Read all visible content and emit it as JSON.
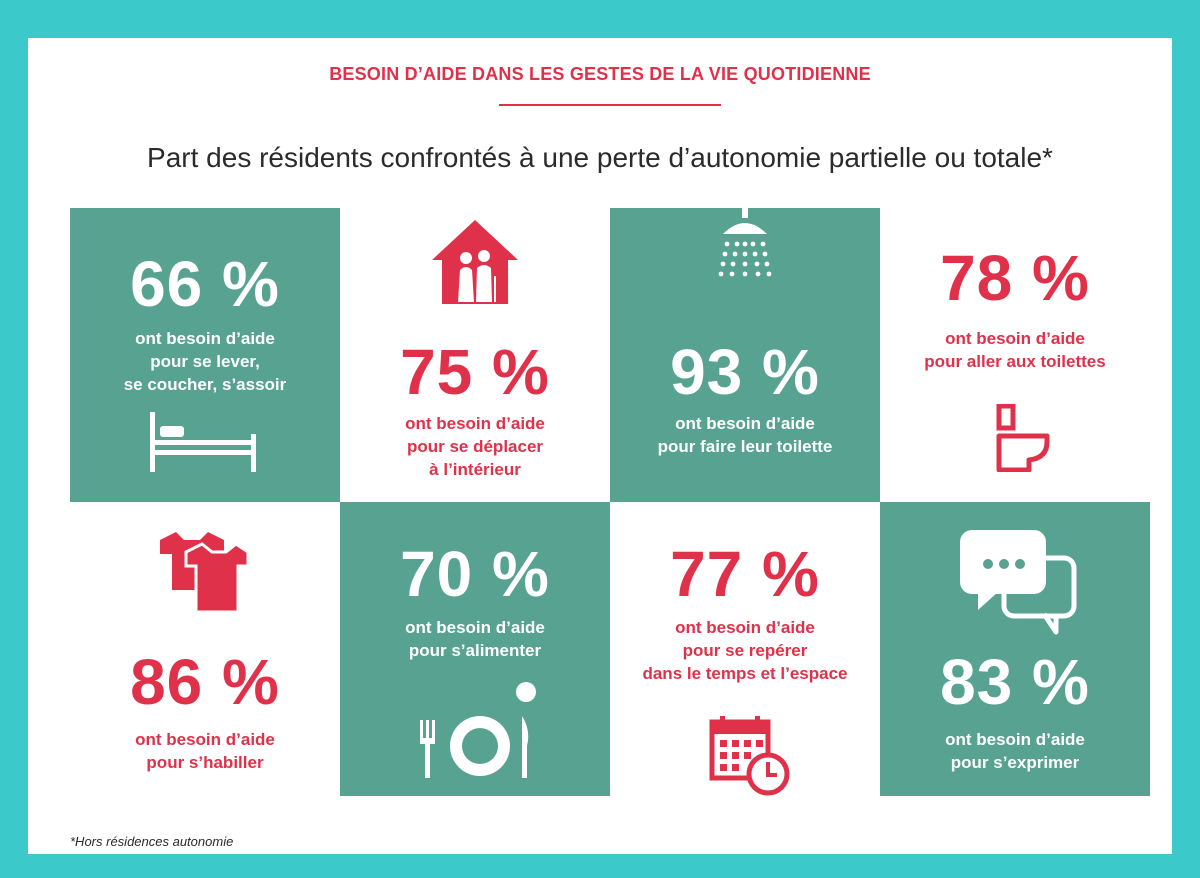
{
  "header": {
    "title": "BESOIN D’AIDE DANS LES GESTES DE LA VIE QUOTIDIENNE",
    "subtitle": "Part des résidents confrontés à une perte d’autonomie partielle ou totale*"
  },
  "colors": {
    "frame": "#3cc9c9",
    "green": "#57a291",
    "red": "#e0314b"
  },
  "tiles": [
    {
      "percent": "66 %",
      "line1": "ont besoin d’aide",
      "line2": "pour se lever,",
      "line3": "se coucher, s’assoir",
      "icon": "bed-icon"
    },
    {
      "percent": "75 %",
      "line1": "ont besoin d’aide",
      "line2": "pour se déplacer",
      "line3": "à l’intérieur",
      "icon": "house-elderly-icon"
    },
    {
      "percent": "93 %",
      "line1": "ont besoin d’aide",
      "line2": "pour faire leur toilette",
      "icon": "shower-icon"
    },
    {
      "percent": "78 %",
      "line1": "ont besoin d’aide",
      "line2": "pour aller aux toilettes",
      "icon": "toilet-icon"
    },
    {
      "percent": "86 %",
      "line1": "ont besoin d’aide",
      "line2": "pour s’habiller",
      "icon": "clothes-icon"
    },
    {
      "percent": "70 %",
      "line1": "ont besoin d’aide",
      "line2": "pour s’alimenter",
      "icon": "plate-cutlery-icon"
    },
    {
      "percent": "77 %",
      "line1": "ont besoin d’aide",
      "line2": "pour se repérer",
      "line3": "dans le temps et l’espace",
      "icon": "calendar-clock-icon"
    },
    {
      "percent": "83 %",
      "line1": "ont besoin d’aide",
      "line2": "pour s’exprimer",
      "icon": "speech-bubbles-icon"
    }
  ],
  "footnote": "*Hors résidences autonomie"
}
